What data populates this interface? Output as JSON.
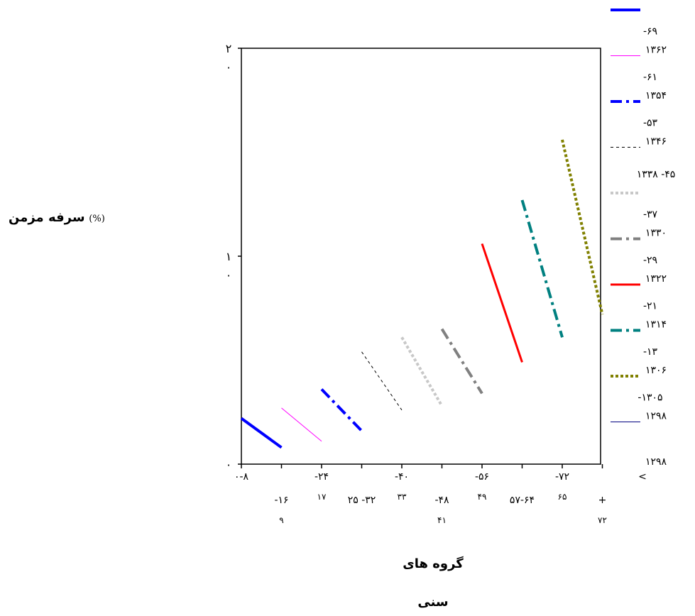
{
  "chart_data": {
    "type": "line",
    "ylabel_text": "سرفه مزمن",
    "ylabel_unit": "(%)",
    "xlabel_line1": "گروه های",
    "xlabel_line2": "سنی",
    "ylim": [
      0,
      2
    ],
    "y_ticks": [
      {
        "value": 2,
        "line1": "۲",
        "line2": "۰"
      },
      {
        "value": 1,
        "line1": "۱",
        "line2": "۰"
      },
      {
        "value": 0,
        "line1": "۰",
        "line2": ""
      }
    ],
    "x_ticks": [
      {
        "line1": "۰-۸",
        "line2": "",
        "row": 0
      },
      {
        "line1": "-۱۶",
        "line2": "۹",
        "row": 1
      },
      {
        "line1": "-۲۴",
        "line2": "۱۷",
        "row": 0
      },
      {
        "line1": "۲۵ -۳۲",
        "line2": "",
        "row": 1
      },
      {
        "line1": "-۴۰",
        "line2": "۳۳",
        "row": 0
      },
      {
        "line1": "-۴۸",
        "line2": "۴۱",
        "row": 1
      },
      {
        "line1": "-۵۶",
        "line2": "۴۹",
        "row": 0
      },
      {
        "line1": "۵۷-۶۴",
        "line2": "",
        "row": 1
      },
      {
        "line1": "-۷۲",
        "line2": "۶۵",
        "row": 0
      },
      {
        "line1": "+",
        "line2": "۷۲",
        "row": 1
      },
      {
        "line1": "<",
        "line2": "",
        "row": 0
      }
    ],
    "series": [
      {
        "legend_line1": "",
        "legend_line2": "",
        "color": "#0000ff",
        "style": "solid",
        "width": 4,
        "x": [
          0,
          1
        ],
        "y": [
          0.22,
          0.08
        ]
      },
      {
        "legend_line1": "-۶۹",
        "legend_line2": "۱۳۶۲",
        "color": "#ff00ff",
        "style": "solid",
        "width": 1,
        "x": [
          1,
          2
        ],
        "y": [
          0.27,
          0.11
        ]
      },
      {
        "legend_line1": "-۶۱",
        "legend_line2": "۱۳۵۴",
        "color": "#0000ff",
        "style": "dashdot",
        "width": 4,
        "x": [
          2,
          3
        ],
        "y": [
          0.36,
          0.16
        ]
      },
      {
        "legend_line1": "-۵۳",
        "legend_line2": "۱۳۴۶",
        "color": "#000000",
        "style": "dashed",
        "width": 1,
        "x": [
          3,
          4
        ],
        "y": [
          0.54,
          0.26
        ]
      },
      {
        "legend_line1": "",
        "legend_line2": "۱۳۳۸ -۴۵",
        "color": "#c8c8c8",
        "style": "dotted",
        "width": 4,
        "x": [
          4,
          5
        ],
        "y": [
          0.61,
          0.28
        ]
      },
      {
        "legend_line1": "-۳۷",
        "legend_line2": "۱۳۳۰",
        "color": "#808080",
        "style": "dashdot",
        "width": 4,
        "x": [
          5,
          6
        ],
        "y": [
          0.65,
          0.34
        ]
      },
      {
        "legend_line1": "-۲۹",
        "legend_line2": "۱۳۲۲",
        "color": "#ff0000",
        "style": "solid",
        "width": 3,
        "x": [
          6,
          7
        ],
        "y": [
          1.06,
          0.49
        ]
      },
      {
        "legend_line1": "-۲۱",
        "legend_line2": "۱۳۱۴",
        "color": "#008080",
        "style": "dashdot",
        "width": 4,
        "x": [
          7,
          8
        ],
        "y": [
          1.27,
          0.61
        ]
      },
      {
        "legend_line1": "-۱۳",
        "legend_line2": "۱۳۰۶",
        "color": "#808000",
        "style": "dotted",
        "width": 4,
        "x": [
          8,
          9
        ],
        "y": [
          1.56,
          0.72
        ]
      },
      {
        "legend_line1": "-۱۳۰۵",
        "legend_line2": "۱۲۹۸",
        "color": "#000080",
        "style": "solid",
        "width": 1,
        "x": [],
        "y": []
      },
      {
        "legend_line1": "",
        "legend_line2": "۱۲۹۸",
        "color": "",
        "style": "none",
        "width": 0,
        "x": [],
        "y": []
      }
    ]
  }
}
